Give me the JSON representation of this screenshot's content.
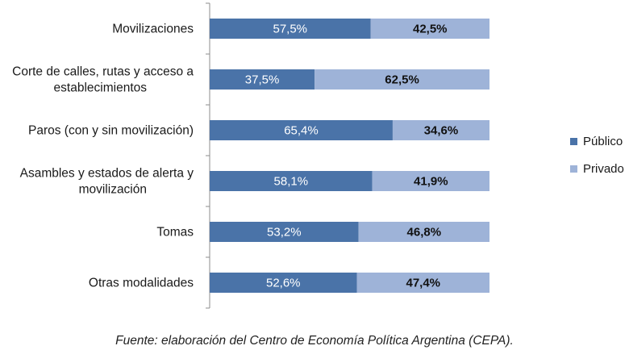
{
  "chart_data": {
    "type": "bar",
    "stacked": true,
    "percent_stacked": true,
    "orientation": "horizontal",
    "categories": [
      "Movilizaciones",
      "Corte de calles, rutas y acceso a\nestablecimientos",
      "Paros (con y sin movilización)",
      "Asambles y estados de alerta y\nmovilización",
      "Tomas",
      "Otras modalidades"
    ],
    "series": [
      {
        "name": "Público",
        "color": "#4a73a8",
        "values": [
          57.5,
          37.5,
          65.4,
          58.1,
          53.2,
          52.6
        ],
        "labels": [
          "57,5%",
          "37,5%",
          "65,4%",
          "58,1%",
          "53,2%",
          "52,6%"
        ]
      },
      {
        "name": "Privado",
        "color": "#9eb3d8",
        "values": [
          42.5,
          62.5,
          34.6,
          41.9,
          46.8,
          47.4
        ],
        "labels": [
          "42,5%",
          "62,5%",
          "34,6%",
          "41,9%",
          "46,8%",
          "47,4%"
        ]
      }
    ],
    "xlim": [
      0,
      100
    ],
    "legend_position": "right",
    "grid": false
  },
  "source_note": "Fuente: elaboración del Centro de Economía Política Argentina (CEPA)."
}
